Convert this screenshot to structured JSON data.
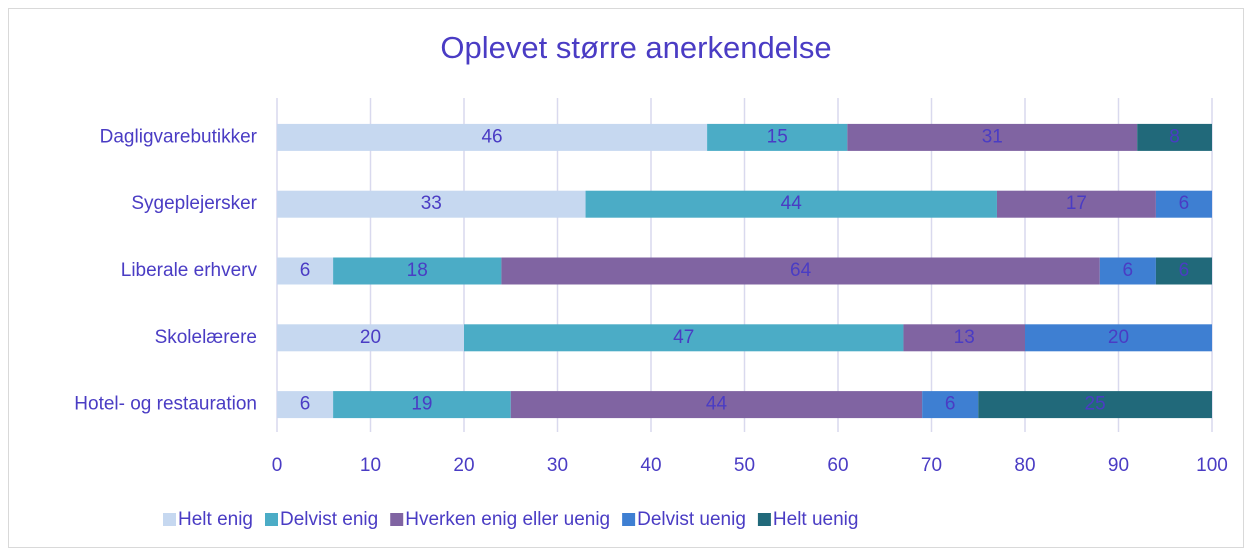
{
  "chart_data": {
    "type": "stacked-bar-horizontal",
    "title": "Oplevet større anerkendelse",
    "categories": [
      "Dagligvarebutikker",
      "Sygeplejersker",
      "Liberale erhverv",
      "Skolelærere",
      "Hotel- og restauration"
    ],
    "series": [
      {
        "name": "Helt enig",
        "color": "#c6d8f0",
        "values": [
          46,
          33,
          6,
          20,
          6
        ]
      },
      {
        "name": "Delvist enig",
        "color": "#4bacc6",
        "values": [
          15,
          44,
          18,
          47,
          19
        ]
      },
      {
        "name": "Hverken enig eller uenig",
        "color": "#8064a2",
        "values": [
          31,
          17,
          64,
          13,
          44
        ]
      },
      {
        "name": "Delvist uenig",
        "color": "#3e7fd2",
        "values": [
          null,
          6,
          6,
          20,
          6
        ]
      },
      {
        "name": "Helt uenig",
        "color": "#21697a",
        "values": [
          8,
          null,
          6,
          null,
          25
        ]
      }
    ],
    "xlim": [
      0,
      100
    ],
    "xticks": [
      0,
      10,
      20,
      30,
      40,
      50,
      60,
      70,
      80,
      90,
      100
    ],
    "grid": true,
    "legend": "bottom"
  }
}
